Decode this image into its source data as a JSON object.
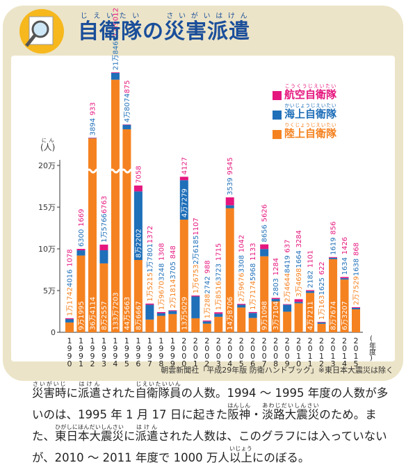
{
  "chart_data": {
    "type": "bar",
    "stacked": true,
    "axis_break": true,
    "title_parts": [
      {
        "text": "自衛隊",
        "ruby": "じえいたい"
      },
      {
        "text": "の"
      },
      {
        "text": "災害派遣",
        "ruby": "さいがいはけん"
      }
    ],
    "y_label": {
      "text": "(人)",
      "ruby": "にん"
    },
    "x_label": "(年度)",
    "categories": [
      "1990",
      "1991",
      "1992",
      "1993",
      "1994",
      "1995",
      "1996",
      "1997",
      "1998",
      "1999",
      "2000",
      "2001",
      "2002",
      "2003",
      "2004",
      "2005",
      "2006",
      "2007",
      "2008",
      "2009",
      "2010",
      "2011",
      "2012",
      "2013",
      "2014",
      "2015"
    ],
    "ylim": [
      0,
      200000
    ],
    "yticks": [
      0,
      {
        "value": 50000,
        "label": "5万"
      },
      {
        "value": 100000,
        "label": "10万"
      },
      {
        "value": 150000,
        "label": "15万"
      },
      {
        "value": 200000,
        "label": "20万"
      }
    ],
    "series": [
      {
        "name": "陸上自衛隊",
        "ruby": "りくじょうじえいたい",
        "color": "#f58220",
        "values": [
          11742,
          91995,
          364114,
          82557,
          1337203,
          445663,
          86667,
          15215,
          19670,
          21814,
          135029,
          16753,
          10288,
          18516,
          148706,
          29676,
          17174,
          91098,
          37104,
          24644,
          34698,
          47211,
          10163,
          87674,
          63207,
          27529
        ],
        "value_labels": [
          "1万1742",
          "9万1995",
          "36万4114",
          "8万2557",
          "133万7203",
          "44万5663",
          "8万6667",
          "1万5215",
          "1万9670",
          "2万1814",
          "13万5029",
          "1万6753",
          "1万288",
          "1万8516",
          "14万8706",
          "2万9676",
          "1万7174",
          "9万1098",
          "3万7104",
          "2万4644",
          "3万4698",
          "4万7211",
          "1万163",
          "8万7674",
          "6万3207",
          "2万7529"
        ]
      },
      {
        "name": "海上自衛隊",
        "ruby": "かいじょうじえいたい",
        "color": "#1f6fb9",
        "values": [
          4016,
          6300,
          3894,
          15766,
          218469,
          48074,
          82202,
          17801,
          3248,
          3705,
          47279,
          26185,
          2742,
          3723,
          3539,
          3308,
          5968,
          8656,
          2803,
          8419,
          1664,
          2182,
          1625,
          1619,
          1634,
          1638
        ],
        "value_labels": [
          "4016",
          "6300",
          "3894",
          "1万5766",
          "21万8469",
          "4万8074",
          "8万2202",
          "1万7801",
          "3248",
          "3705",
          "4万7279",
          "2万6185",
          "2742",
          "3723",
          "3539",
          "3308",
          "5968",
          "8656",
          "2803",
          "8419",
          "1664",
          "2182",
          "1625",
          "1619",
          "1634",
          "1638"
        ]
      },
      {
        "name": "航空自衛隊",
        "ruby": "こうくうじえいたい",
        "color": "#e5177e",
        "values": [
          1078,
          1669,
          933,
          6763,
          19012,
          875,
          7058,
          1372,
          1308,
          848,
          4127,
          1107,
          988,
          1715,
          9545,
          1042,
          1133,
          5626,
          1284,
          637,
          3284,
          1101,
          622,
          856,
          1426,
          868
        ],
        "value_labels": [
          "1078",
          "1669",
          "933",
          "6763",
          "1万9012",
          "875",
          "7058",
          "1372",
          "1308",
          "848",
          "4127",
          "1107",
          "988",
          "1715",
          "9545",
          "1042",
          "1133",
          "5626",
          "1284",
          "637",
          "3284",
          "1101",
          "622",
          "856",
          "1426",
          "868"
        ]
      }
    ],
    "source": "朝雲新聞社「平成29年版 防衛ハンドブック」※東日本大震災は除く",
    "caption_parts": [
      {
        "text": "災害時",
        "ruby": "さいがいじ"
      },
      {
        "text": "に"
      },
      {
        "text": "派遣",
        "ruby": "はけん"
      },
      {
        "text": "された"
      },
      {
        "text": "自衛隊員",
        "ruby": "じえいたいいん"
      },
      {
        "text": "の人数。1994 ～ 1995 年度の人数が多いのは、1995 年 1 月 17 日に起きた"
      },
      {
        "text": "阪神",
        "ruby": "はんしん"
      },
      {
        "text": "・"
      },
      {
        "text": "淡路大震災",
        "ruby": "あわじだいしんさい"
      },
      {
        "text": "のため。また、"
      },
      {
        "text": "東日本大震災",
        "ruby": "ひがしにほんだいしんさい"
      },
      {
        "text": "に"
      },
      {
        "text": "派遣",
        "ruby": "はけん"
      },
      {
        "text": "された人数は、このグラフには入っていないが、2010 ～ 2011 年度で 1000 万人"
      },
      {
        "text": "以上",
        "ruby": "いじょう"
      },
      {
        "text": "にのぼる。"
      }
    ]
  }
}
